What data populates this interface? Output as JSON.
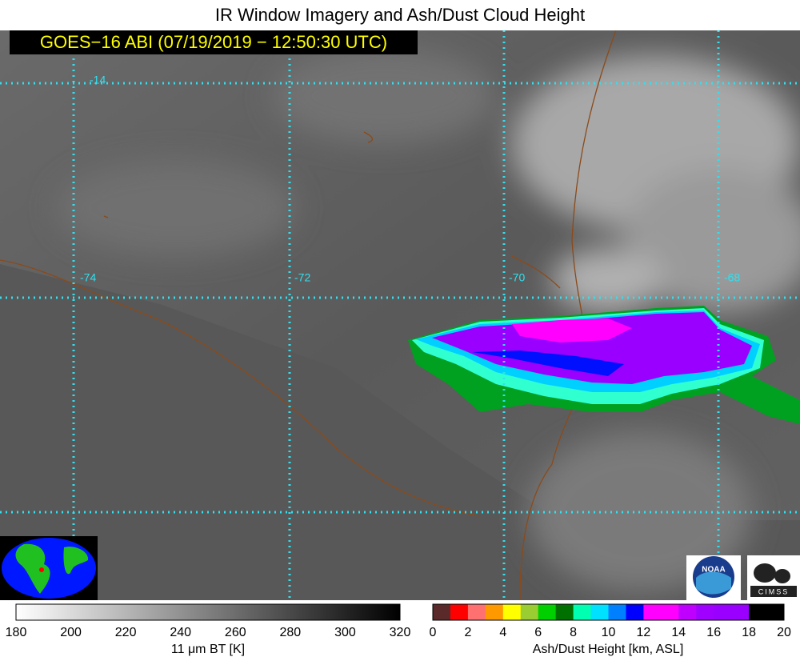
{
  "header": {
    "title": "IR Window Imagery and Ash/Dust Cloud Height",
    "subtitle": "GOES−16 ABI (07/19/2019 − 12:50:30 UTC)"
  },
  "map": {
    "latitude_labels": [
      "-14"
    ],
    "longitude_labels": [
      "-74",
      "-72",
      "-70",
      "-68"
    ]
  },
  "logos": [
    "NOAA",
    "CIMSS"
  ],
  "colorbars": [
    {
      "label": "11 μm BT [K]",
      "ticks": [
        180,
        200,
        220,
        240,
        260,
        280,
        300,
        320
      ],
      "colors": [
        "#ffffff",
        "#000000"
      ]
    },
    {
      "label": "Ash/Dust Height [km, ASL]",
      "ticks": [
        0,
        2,
        4,
        6,
        8,
        10,
        12,
        14,
        16,
        18,
        20
      ],
      "colors": [
        "#5a2a2a",
        "#ff0000",
        "#ff7070",
        "#ff9900",
        "#ffff00",
        "#9acd32",
        "#00d000",
        "#007000",
        "#00ffb0",
        "#00e0ff",
        "#0080ff",
        "#0000ff",
        "#ff00ff",
        "#ff00ff",
        "#c000ff",
        "#a000ff",
        "#9a00ff",
        "#9a00ff",
        "#000000",
        "#000000"
      ]
    }
  ]
}
